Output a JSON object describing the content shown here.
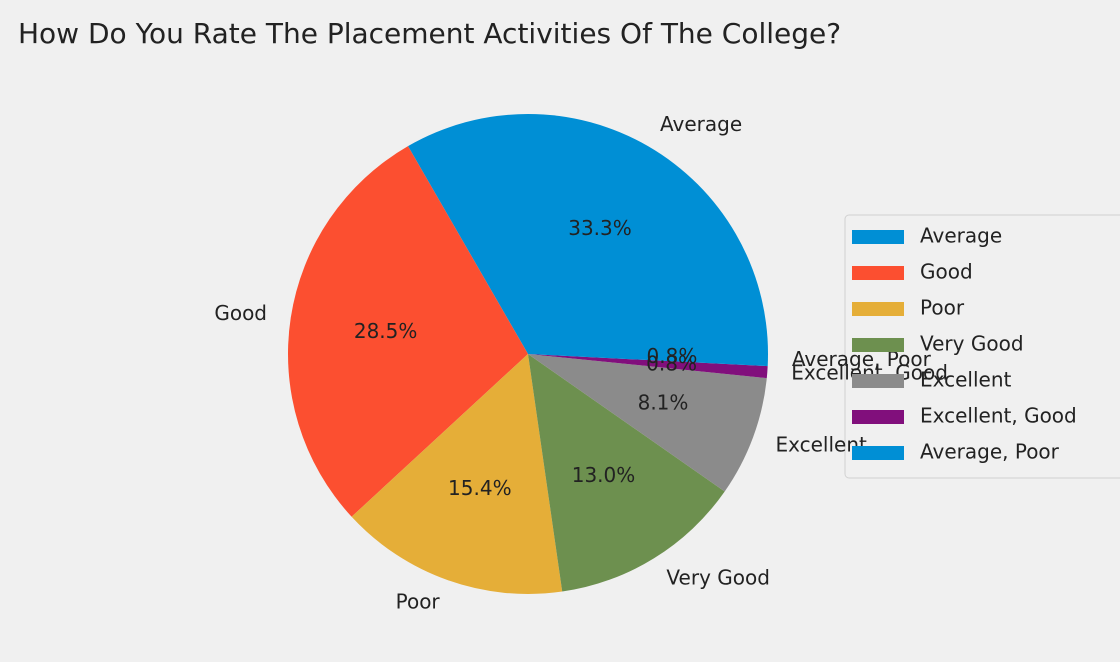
{
  "chart_data": {
    "type": "pie",
    "title": "How Do You Rate The Placement Activities Of The College?",
    "categories": [
      "Average",
      "Good",
      "Poor",
      "Very Good",
      "Excellent",
      "Excellent, Good",
      "Average, Poor"
    ],
    "values": [
      33.3,
      28.5,
      15.4,
      13.0,
      8.1,
      0.8,
      0.8
    ],
    "value_labels": [
      "33.3%",
      "28.5%",
      "15.4%",
      "13.0%",
      "8.1%",
      "0.8%",
      "0.8%"
    ],
    "colors": [
      "#008fd5",
      "#fc4f30",
      "#e5ae38",
      "#6d904f",
      "#8b8b8b",
      "#810f7c",
      "#008fd5"
    ],
    "legend": "right"
  }
}
